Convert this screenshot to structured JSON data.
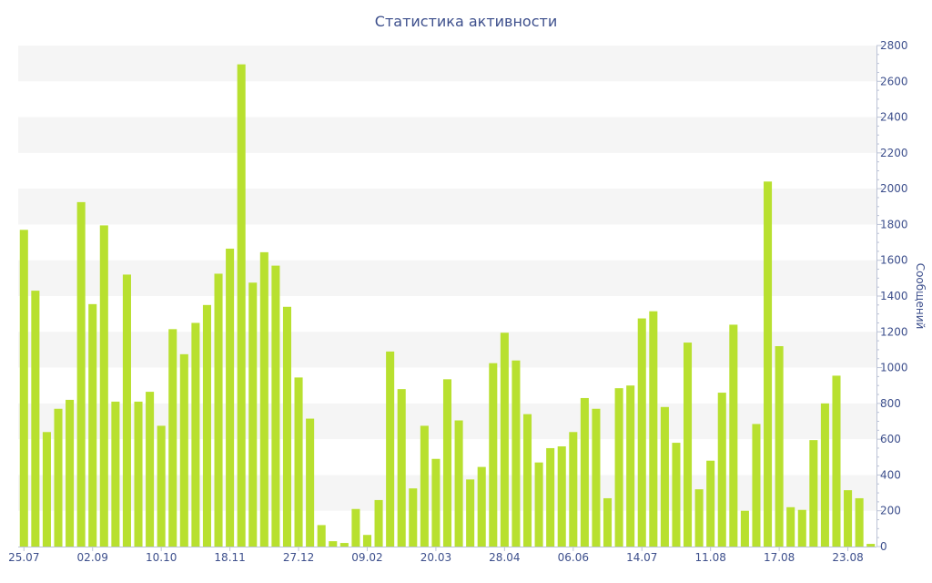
{
  "chart_data": {
    "type": "bar",
    "title": "Статистика активности",
    "ylabel": "Сообщений",
    "xlabel": "",
    "ylim": [
      0,
      2800
    ],
    "y_ticks": [
      0,
      200,
      400,
      600,
      800,
      1000,
      1200,
      1400,
      1600,
      1800,
      2000,
      2200,
      2400,
      2600,
      2800
    ],
    "y_axis_side": "right",
    "x_tick_labels": [
      {
        "label": "25.07",
        "index": 0
      },
      {
        "label": "02.09",
        "index": 6
      },
      {
        "label": "10.10",
        "index": 12
      },
      {
        "label": "18.11",
        "index": 18
      },
      {
        "label": "27.12",
        "index": 24
      },
      {
        "label": "09.02",
        "index": 30
      },
      {
        "label": "20.03",
        "index": 36
      },
      {
        "label": "28.04",
        "index": 42
      },
      {
        "label": "06.06",
        "index": 48
      },
      {
        "label": "14.07",
        "index": 54
      },
      {
        "label": "11.08",
        "index": 60
      },
      {
        "label": "17.08",
        "index": 66
      },
      {
        "label": "23.08",
        "index": 72
      }
    ],
    "bar_color": "#b8e02f",
    "grid_bands": true,
    "legend": "none",
    "values": [
      1770,
      1430,
      640,
      770,
      820,
      1925,
      1355,
      1795,
      810,
      1520,
      810,
      865,
      675,
      1215,
      1075,
      1250,
      1350,
      1525,
      1665,
      2695,
      1475,
      1645,
      1570,
      1340,
      945,
      715,
      120,
      30,
      20,
      210,
      65,
      260,
      1090,
      880,
      325,
      675,
      490,
      935,
      705,
      375,
      445,
      1025,
      1195,
      1040,
      740,
      470,
      550,
      560,
      640,
      830,
      770,
      270,
      885,
      900,
      1275,
      1315,
      780,
      580,
      1140,
      320,
      480,
      860,
      1240,
      200,
      685,
      2040,
      1120,
      220,
      205,
      595,
      800,
      955,
      315,
      270,
      15
    ]
  }
}
